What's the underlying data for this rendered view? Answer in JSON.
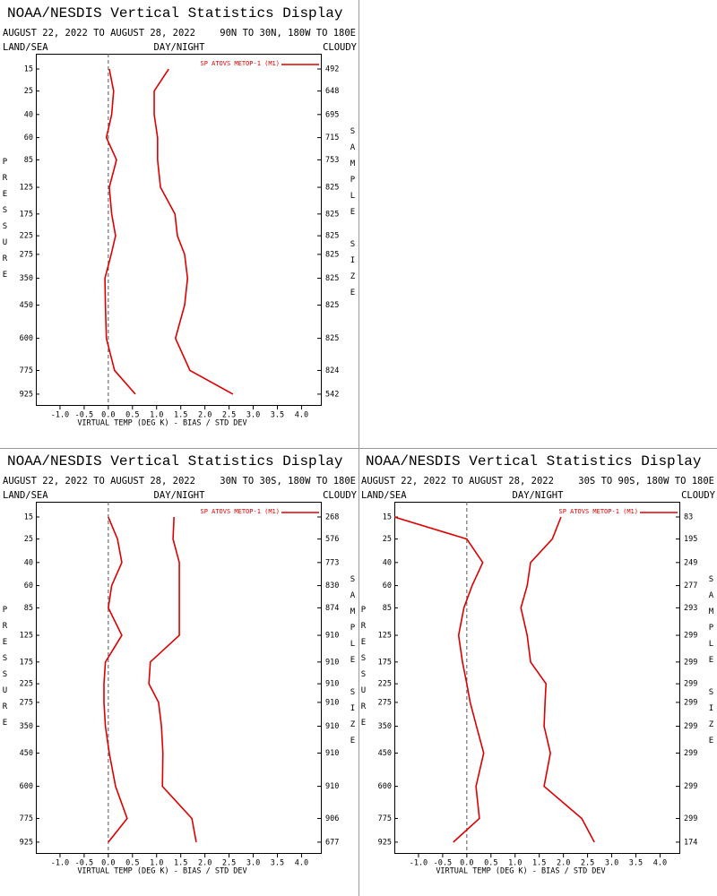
{
  "chart_data": [
    {
      "type": "line",
      "title": "NOAA/NESDIS Vertical Statistics Display",
      "subtitle": "AUGUST 22, 2022 TO AUGUST 28, 2022",
      "region": "90N TO 30N, 180W TO 180E",
      "land_sea_label": "LAND/SEA",
      "day_night_label": "DAY/NIGHT",
      "cloud_label": "CLOUDY",
      "ylabel": "PRESSURE",
      "y2label": "SAMPLE SIZE",
      "xlabel": "VIRTUAL TEMP (DEG K) - BIAS / STD DEV",
      "y": [
        15,
        25,
        40,
        60,
        85,
        125,
        175,
        225,
        275,
        350,
        450,
        600,
        775,
        925
      ],
      "series": [
        {
          "name": "SP ATOVS METOP-1 (M1)",
          "color": "#dd0000",
          "values": [
            0.02,
            0.11,
            0.07,
            -0.04,
            0.17,
            0.02,
            0.07,
            0.15,
            0.06,
            -0.07,
            -0.06,
            -0.04,
            0.13,
            0.56
          ]
        },
        {
          "color": "#dd0000",
          "values": [
            1.25,
            0.95,
            0.95,
            1.02,
            1.02,
            1.08,
            1.38,
            1.43,
            1.58,
            1.64,
            1.58,
            1.39,
            1.69,
            2.58
          ]
        }
      ],
      "sample_size": [
        492,
        648,
        695,
        715,
        753,
        825,
        825,
        825,
        825,
        825,
        825,
        825,
        824,
        542
      ],
      "xlim": [
        -1.5,
        4.4
      ],
      "ylim": [
        10,
        1000
      ],
      "xticks": [
        {
          "value": -1,
          "label": "-1.0"
        },
        {
          "value": -0.5,
          "label": "-0.5"
        },
        {
          "value": 0,
          "label": "0.0"
        },
        {
          "value": 0.5,
          "label": "0.5"
        },
        {
          "value": 1,
          "label": "1.0"
        },
        {
          "value": 1.5,
          "label": "1.5"
        },
        {
          "value": 2,
          "label": "2.0"
        },
        {
          "value": 2.5,
          "label": "2.5"
        },
        {
          "value": 3,
          "label": "3.0"
        },
        {
          "value": 3.5,
          "label": "3.5"
        },
        {
          "value": 4,
          "label": "4.0"
        }
      ],
      "yticks": [
        15,
        25,
        40,
        60,
        85,
        125,
        175,
        225,
        275,
        350,
        450,
        600,
        775,
        925
      ]
    },
    {
      "type": "line",
      "title": "NOAA/NESDIS Vertical Statistics Display",
      "subtitle": "AUGUST 22, 2022 TO AUGUST 28, 2022",
      "region": "30N TO 30S, 180W TO 180E",
      "land_sea_label": "LAND/SEA",
      "day_night_label": "DAY/NIGHT",
      "cloud_label": "CLOUDY",
      "ylabel": "PRESSURE",
      "y2label": "SAMPLE SIZE",
      "xlabel": "VIRTUAL TEMP (DEG K) - BIAS / STD DEV",
      "y": [
        15,
        25,
        40,
        60,
        85,
        125,
        175,
        225,
        275,
        350,
        450,
        600,
        775,
        925
      ],
      "series": [
        {
          "name": "SP ATOVS METOP-1 (M1)",
          "color": "#dd0000",
          "values": [
            0.0,
            0.19,
            0.28,
            0.07,
            0.0,
            0.28,
            -0.06,
            -0.09,
            -0.09,
            -0.06,
            0.02,
            0.15,
            0.39,
            0.0
          ]
        },
        {
          "color": "#dd0000",
          "values": [
            1.36,
            1.34,
            1.47,
            1.47,
            1.47,
            1.47,
            0.87,
            0.84,
            1.04,
            1.1,
            1.13,
            1.12,
            1.73,
            1.82
          ]
        }
      ],
      "sample_size": [
        268,
        576,
        773,
        830,
        874,
        910,
        910,
        910,
        910,
        910,
        910,
        910,
        906,
        677
      ],
      "xlim": [
        -1.5,
        4.4
      ],
      "ylim": [
        10,
        1000
      ],
      "xticks": [
        {
          "value": -1,
          "label": "-1.0"
        },
        {
          "value": -0.5,
          "label": "-0.5"
        },
        {
          "value": 0,
          "label": "0.0"
        },
        {
          "value": 0.5,
          "label": "0.5"
        },
        {
          "value": 1,
          "label": "1.0"
        },
        {
          "value": 1.5,
          "label": "1.5"
        },
        {
          "value": 2,
          "label": "2.0"
        },
        {
          "value": 2.5,
          "label": "2.5"
        },
        {
          "value": 3,
          "label": "3.0"
        },
        {
          "value": 3.5,
          "label": "3.5"
        },
        {
          "value": 4,
          "label": "4.0"
        }
      ],
      "yticks": [
        15,
        25,
        40,
        60,
        85,
        125,
        175,
        225,
        275,
        350,
        450,
        600,
        775,
        925
      ]
    },
    {
      "type": "line",
      "title": "NOAA/NESDIS Vertical Statistics Display",
      "subtitle": "AUGUST 22, 2022 TO AUGUST 28, 2022",
      "region": "30S TO 90S, 180W TO 180E",
      "land_sea_label": "LAND/SEA",
      "day_night_label": "DAY/NIGHT",
      "cloud_label": "CLOUDY",
      "ylabel": "PRESSURE",
      "y2label": "SAMPLE SIZE",
      "xlabel": "VIRTUAL TEMP (DEG K) - BIAS / STD DEV",
      "y": [
        15,
        25,
        40,
        60,
        85,
        125,
        175,
        225,
        275,
        350,
        450,
        600,
        775,
        925
      ],
      "series": [
        {
          "name": "SP ATOVS METOP-1 (M1)",
          "color": "#dd0000",
          "values": [
            -1.5,
            0.0,
            0.33,
            0.11,
            -0.06,
            -0.17,
            -0.09,
            0.0,
            0.07,
            0.2,
            0.35,
            0.19,
            0.26,
            -0.28
          ]
        },
        {
          "color": "#dd0000",
          "values": [
            1.95,
            1.77,
            1.32,
            1.25,
            1.12,
            1.25,
            1.32,
            1.64,
            1.62,
            1.6,
            1.73,
            1.6,
            2.38,
            2.64
          ]
        }
      ],
      "sample_size": [
        83,
        195,
        249,
        277,
        293,
        299,
        299,
        299,
        299,
        299,
        299,
        299,
        299,
        174
      ],
      "xlim": [
        -1.5,
        4.4
      ],
      "ylim": [
        10,
        1000
      ],
      "xticks": [
        {
          "value": -1,
          "label": "-1.0"
        },
        {
          "value": -0.5,
          "label": "-0.5"
        },
        {
          "value": 0,
          "label": "0.0"
        },
        {
          "value": 0.5,
          "label": "0.5"
        },
        {
          "value": 1,
          "label": "1.0"
        },
        {
          "value": 1.5,
          "label": "1.5"
        },
        {
          "value": 2,
          "label": "2.0"
        },
        {
          "value": 2.5,
          "label": "2.5"
        },
        {
          "value": 3,
          "label": "3.0"
        },
        {
          "value": 3.5,
          "label": "3.5"
        },
        {
          "value": 4,
          "label": "4.0"
        }
      ],
      "yticks": [
        15,
        25,
        40,
        60,
        85,
        125,
        175,
        225,
        275,
        350,
        450,
        600,
        775,
        925
      ]
    }
  ]
}
